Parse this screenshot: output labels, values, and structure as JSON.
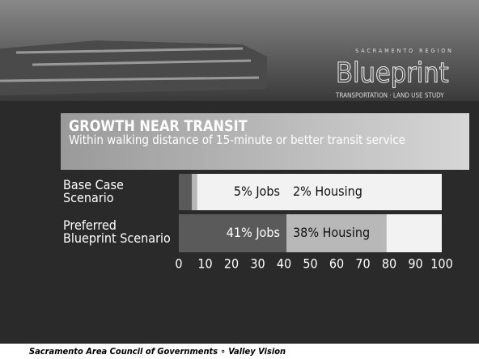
{
  "chart_data": {
    "type": "stacked-bar-horizontal",
    "header": {
      "logo_top": "SACRAMENTO REGION",
      "logo": "Blueprint",
      "logo_bottom": "TRANSPORTATION · LAND USE STUDY"
    },
    "title": "GROWTH NEAR TRANSIT",
    "subtitle": "Within walking distance of 15-minute or better transit service",
    "categories": [
      "Base Case\nScenario",
      "Preferred\nBlueprint Scenario"
    ],
    "series": [
      {
        "color": "#5a5a5a",
        "values": [
          5,
          41
        ],
        "value_labels": [
          "5% Jobs",
          "41% Jobs"
        ]
      },
      {
        "color": "#b8b8b8",
        "values": [
          2,
          38
        ],
        "value_labels": [
          "2% Housing",
          "38% Housing"
        ]
      }
    ],
    "xlim": [
      0,
      100
    ],
    "xticks": [
      0,
      10,
      20,
      30,
      40,
      50,
      60,
      70,
      80,
      90,
      100
    ],
    "footer": "Sacramento Area Council of Governments ∘ Valley Vision"
  }
}
